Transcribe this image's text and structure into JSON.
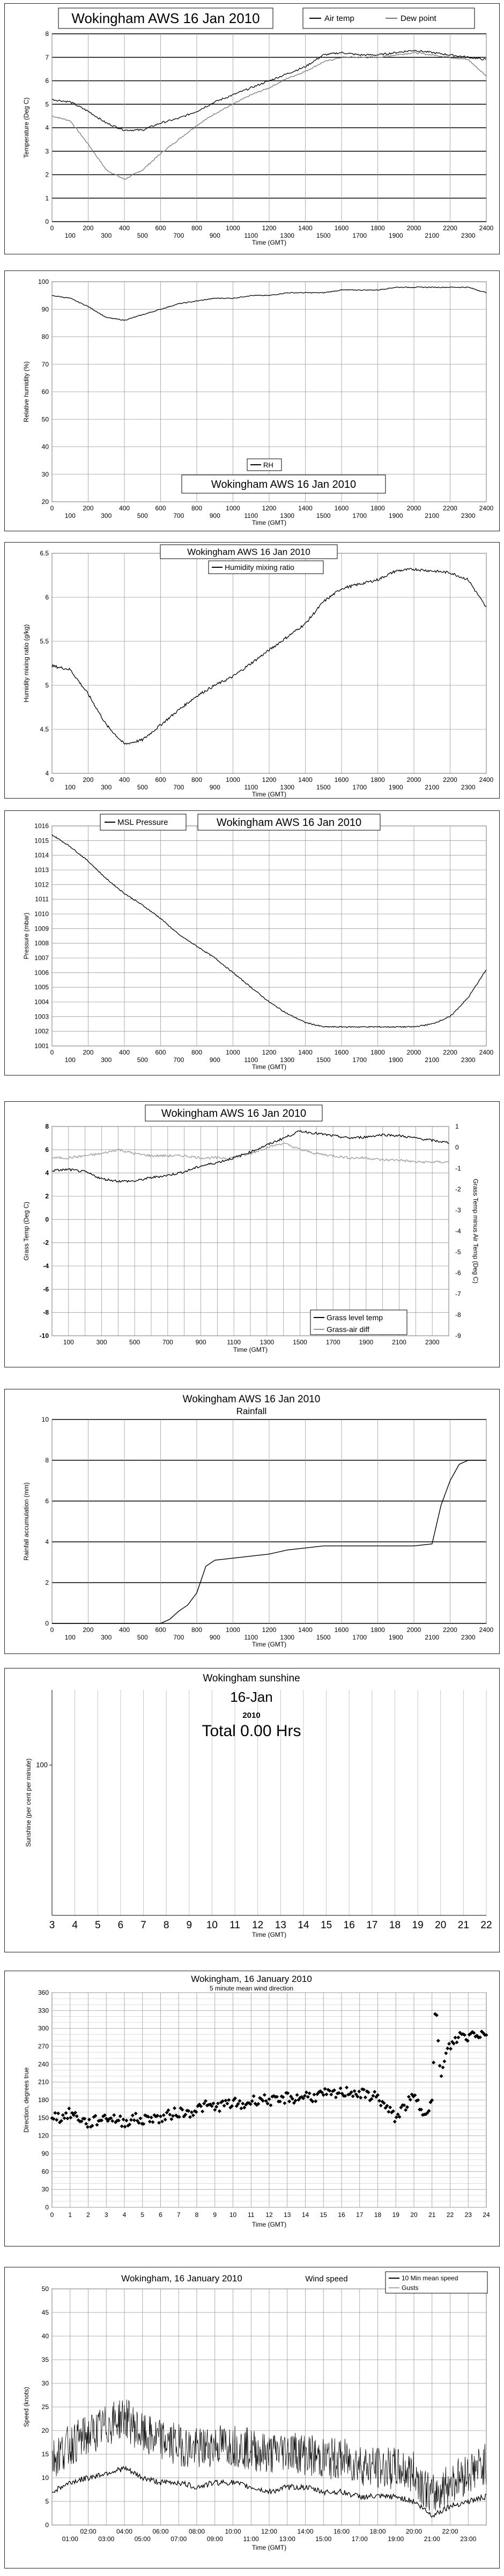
{
  "charts": [
    {
      "id": "temp",
      "type": "line",
      "title": "Wokingham AWS 16 Jan 2010",
      "ylabel": "Temperature (Deg C)",
      "xlabel": "Time (GMT)",
      "ylim": [
        0,
        8
      ],
      "yticks": [
        "0",
        "1",
        "2",
        "3",
        "4",
        "5",
        "6",
        "7",
        "8"
      ],
      "xlim": [
        0,
        2400
      ],
      "xticks_top": [
        "0",
        "200",
        "400",
        "600",
        "800",
        "1000",
        "1200",
        "1400",
        "1600",
        "1800",
        "2000",
        "2200",
        "2400"
      ],
      "xticks_bottom": [
        "100",
        "300",
        "500",
        "700",
        "900",
        "1100",
        "1300",
        "1500",
        "1700",
        "1900",
        "2100",
        "2300"
      ],
      "series": [
        {
          "name": "Air temp",
          "x": [
            0,
            100,
            200,
            300,
            400,
            500,
            600,
            700,
            800,
            900,
            1000,
            1100,
            1200,
            1300,
            1400,
            1500,
            1600,
            1700,
            1800,
            1900,
            2000,
            2100,
            2200,
            2300,
            2400
          ],
          "values": [
            5.2,
            5.1,
            4.7,
            4.2,
            3.9,
            3.9,
            4.2,
            4.4,
            4.7,
            5.1,
            5.4,
            5.7,
            6.0,
            6.3,
            6.6,
            7.1,
            7.2,
            7.1,
            7.1,
            7.2,
            7.3,
            7.2,
            7.1,
            7.0,
            6.9
          ]
        },
        {
          "name": "Dew point",
          "x": [
            0,
            100,
            200,
            300,
            400,
            500,
            600,
            700,
            800,
            900,
            1000,
            1100,
            1200,
            1300,
            1400,
            1500,
            1600,
            1700,
            1800,
            1900,
            2000,
            2100,
            2200,
            2300,
            2400
          ],
          "values": [
            4.5,
            4.3,
            3.3,
            2.2,
            1.8,
            2.2,
            2.9,
            3.5,
            4.1,
            4.6,
            5.0,
            5.4,
            5.7,
            6.1,
            6.4,
            6.8,
            7.0,
            7.0,
            7.0,
            7.1,
            7.2,
            7.1,
            7.0,
            6.9,
            6.2
          ]
        }
      ]
    },
    {
      "id": "rh",
      "type": "line",
      "title": "Wokingham AWS 16 Jan 2010",
      "ylabel": "Relative humidity (%)",
      "xlabel": "Time (GMT)",
      "ylim": [
        20,
        100
      ],
      "yticks": [
        "20",
        "30",
        "40",
        "50",
        "60",
        "70",
        "80",
        "90",
        "100"
      ],
      "xlim": [
        0,
        2400
      ],
      "xticks_top": [
        "0",
        "200",
        "400",
        "600",
        "800",
        "1000",
        "1200",
        "1400",
        "1600",
        "1800",
        "2000",
        "2200",
        "2400"
      ],
      "xticks_bottom": [
        "100",
        "300",
        "500",
        "700",
        "900",
        "1100",
        "1300",
        "1500",
        "1700",
        "1900",
        "2100",
        "2300"
      ],
      "series": [
        {
          "name": "RH",
          "x": [
            0,
            100,
            200,
            300,
            400,
            500,
            600,
            700,
            800,
            900,
            1000,
            1100,
            1200,
            1300,
            1400,
            1500,
            1600,
            1700,
            1800,
            1900,
            2000,
            2100,
            2200,
            2300,
            2400
          ],
          "values": [
            95,
            94,
            91,
            87,
            86,
            88,
            90,
            92,
            93,
            94,
            94,
            95,
            95,
            96,
            96,
            96,
            97,
            97,
            97,
            98,
            98,
            98,
            98,
            98,
            96
          ]
        }
      ]
    },
    {
      "id": "mix",
      "type": "line",
      "title": "Wokingham AWS 16 Jan 2010",
      "ylabel": "Humidity mixing ratio (g/kg)",
      "xlabel": "Time (GMT)",
      "ylim": [
        4,
        6.5
      ],
      "yticks": [
        "4",
        "4.5",
        "5",
        "5.5",
        "6",
        "6.5"
      ],
      "xlim": [
        0,
        2400
      ],
      "xticks_top": [
        "0",
        "200",
        "400",
        "600",
        "800",
        "1000",
        "1200",
        "1400",
        "1600",
        "1800",
        "2000",
        "2200",
        "2400"
      ],
      "xticks_bottom": [
        "100",
        "300",
        "500",
        "700",
        "900",
        "1100",
        "1300",
        "1500",
        "1700",
        "1900",
        "2100",
        "2300"
      ],
      "series": [
        {
          "name": "Humidity mixing ratio",
          "x": [
            0,
            100,
            200,
            300,
            400,
            500,
            600,
            700,
            800,
            900,
            1000,
            1100,
            1200,
            1300,
            1400,
            1500,
            1600,
            1700,
            1800,
            1900,
            2000,
            2100,
            2200,
            2300,
            2400
          ],
          "values": [
            5.22,
            5.18,
            4.9,
            4.55,
            4.33,
            4.38,
            4.55,
            4.72,
            4.88,
            5.0,
            5.1,
            5.25,
            5.4,
            5.55,
            5.7,
            5.95,
            6.1,
            6.15,
            6.2,
            6.3,
            6.32,
            6.3,
            6.28,
            6.2,
            5.88
          ]
        }
      ]
    },
    {
      "id": "pres",
      "type": "line",
      "title": "Wokingham AWS 16 Jan 2010",
      "ylabel": "Pressure (mbar)",
      "xlabel": "Time (GMT)",
      "ylim": [
        1001,
        1016
      ],
      "yticks": [
        "1001",
        "1002",
        "1003",
        "1004",
        "1005",
        "1006",
        "1007",
        "1008",
        "1009",
        "1010",
        "1011",
        "1012",
        "1013",
        "1014",
        "1015",
        "1016"
      ],
      "xlim": [
        0,
        2400
      ],
      "xticks_top": [
        "0",
        "200",
        "400",
        "600",
        "800",
        "1000",
        "1200",
        "1400",
        "1600",
        "1800",
        "2000",
        "2200",
        "2400"
      ],
      "xticks_bottom": [
        "100",
        "300",
        "500",
        "700",
        "900",
        "1100",
        "1300",
        "1500",
        "1700",
        "1900",
        "2100",
        "2300"
      ],
      "series": [
        {
          "name": "MSL Pressure",
          "x": [
            0,
            100,
            200,
            300,
            400,
            500,
            600,
            700,
            800,
            900,
            1000,
            1100,
            1200,
            1300,
            1400,
            1500,
            1600,
            1700,
            1800,
            1900,
            2000,
            2100,
            2200,
            2300,
            2400
          ],
          "values": [
            1015.4,
            1014.6,
            1013.6,
            1012.4,
            1011.4,
            1010.6,
            1009.7,
            1008.6,
            1007.8,
            1007.0,
            1006.0,
            1005.0,
            1004.0,
            1003.2,
            1002.6,
            1002.3,
            1002.3,
            1002.3,
            1002.3,
            1002.3,
            1002.3,
            1002.5,
            1003.0,
            1004.3,
            1006.2
          ]
        }
      ]
    },
    {
      "id": "grass",
      "type": "line",
      "title": "Wokingham AWS 16 Jan 2010",
      "ylabel": "Grass Temp (Deg C)",
      "y2label": "Grass Temp minus Air Temp (Deg C)",
      "xlabel": "Time (GMT)",
      "ylim": [
        -10,
        8
      ],
      "yticks": [
        "-10",
        "-8",
        "-6",
        "-4",
        "-2",
        "0",
        "2",
        "4",
        "6",
        "8"
      ],
      "y2lim": [
        -9,
        1
      ],
      "y2ticks": [
        "-9",
        "-8",
        "-7",
        "-6",
        "-5",
        "-4",
        "-3",
        "-2",
        "-1",
        "0",
        "1"
      ],
      "xlim": [
        0,
        2400
      ],
      "xticks_bottom": [
        "100",
        "300",
        "500",
        "700",
        "900",
        "1100",
        "1300",
        "1500",
        "1700",
        "1900",
        "2100",
        "2300"
      ],
      "series": [
        {
          "name": "Grass level temp",
          "axis": "left",
          "x": [
            0,
            100,
            200,
            300,
            400,
            500,
            600,
            700,
            800,
            900,
            1000,
            1100,
            1200,
            1300,
            1400,
            1500,
            1600,
            1700,
            1800,
            1900,
            2000,
            2100,
            2200,
            2300,
            2400
          ],
          "values": [
            4.2,
            4.3,
            4.1,
            3.5,
            3.3,
            3.3,
            3.6,
            3.8,
            4.1,
            4.6,
            4.9,
            5.3,
            5.8,
            6.4,
            7.0,
            7.6,
            7.4,
            7.2,
            7.0,
            7.1,
            7.3,
            7.2,
            7.0,
            6.8,
            6.6
          ]
        },
        {
          "name": "Grass-air diff",
          "axis": "right",
          "x": [
            0,
            100,
            200,
            300,
            400,
            500,
            600,
            700,
            800,
            900,
            1000,
            1100,
            1200,
            1300,
            1400,
            1500,
            1600,
            1700,
            1800,
            1900,
            2000,
            2100,
            2200,
            2300,
            2400
          ],
          "values": [
            -0.5,
            -0.5,
            -0.4,
            -0.3,
            -0.1,
            -0.3,
            -0.4,
            -0.4,
            -0.4,
            -0.5,
            -0.5,
            -0.5,
            -0.3,
            0.0,
            0.2,
            -0.1,
            -0.3,
            -0.4,
            -0.5,
            -0.5,
            -0.6,
            -0.6,
            -0.7,
            -0.7,
            -0.7
          ]
        }
      ]
    },
    {
      "id": "rain",
      "type": "line",
      "title": "Wokingham AWS 16 Jan 2010",
      "subtitle": "Rainfall",
      "ylabel": "Rainfall accumulation (mm)",
      "xlabel": "Time (GMT)",
      "ylim": [
        0,
        10
      ],
      "yticks": [
        "0",
        "2",
        "4",
        "6",
        "8",
        "10"
      ],
      "xlim": [
        0,
        2400
      ],
      "xticks_top": [
        "0",
        "200",
        "400",
        "600",
        "800",
        "1000",
        "1200",
        "1400",
        "1600",
        "1800",
        "2000",
        "2200",
        "2400"
      ],
      "xticks_bottom": [
        "100",
        "300",
        "500",
        "700",
        "900",
        "1100",
        "1300",
        "1500",
        "1700",
        "1900",
        "2100",
        "2300"
      ],
      "series": [
        {
          "name": "Rainfall",
          "x": [
            0,
            600,
            650,
            700,
            750,
            800,
            850,
            900,
            1000,
            1100,
            1200,
            1300,
            1400,
            1500,
            1600,
            1700,
            1800,
            1900,
            2000,
            2100,
            2150,
            2200,
            2250,
            2300,
            2350,
            2400
          ],
          "values": [
            0,
            0,
            0.2,
            0.6,
            0.9,
            1.5,
            2.8,
            3.1,
            3.2,
            3.3,
            3.4,
            3.6,
            3.7,
            3.8,
            3.8,
            3.8,
            3.8,
            3.8,
            3.8,
            3.9,
            5.8,
            7.0,
            7.8,
            8.0,
            8.0,
            8.0
          ]
        }
      ]
    },
    {
      "id": "sun",
      "type": "bar",
      "title": "Wokingham sunshine",
      "date_label": "16-Jan",
      "year_label": "2010",
      "total_label": "Total 0.00 Hrs",
      "ylabel": "Sunshine (per cent per minute)",
      "xlabel": "Time (GMT)",
      "ylim": [
        0,
        150
      ],
      "yticks": [
        "100"
      ],
      "xlim": [
        3,
        22
      ],
      "xticks": [
        "3",
        "4",
        "5",
        "6",
        "7",
        "8",
        "9",
        "10",
        "11",
        "12",
        "13",
        "14",
        "15",
        "16",
        "17",
        "18",
        "19",
        "20",
        "21",
        "22"
      ],
      "values": []
    },
    {
      "id": "dir",
      "type": "scatter",
      "title": "Wokingham,  16 January 2010",
      "subtitle": "5 minute mean wind direction",
      "ylabel": "Direction, degrees true",
      "xlabel": "Time (GMT)",
      "ylim": [
        0,
        360
      ],
      "yticks": [
        "0",
        "30",
        "60",
        "90",
        "120",
        "150",
        "180",
        "210",
        "240",
        "270",
        "300",
        "330",
        "360"
      ],
      "xlim": [
        0,
        24
      ],
      "xticks": [
        "0",
        "1",
        "2",
        "3",
        "4",
        "5",
        "6",
        "7",
        "8",
        "9",
        "10",
        "11",
        "12",
        "13",
        "14",
        "15",
        "16",
        "17",
        "18",
        "19",
        "20",
        "21",
        "22",
        "23",
        "24"
      ],
      "series": [
        {
          "name": "5 minute mean wind direction",
          "x": [
            0,
            0.5,
            1,
            1.5,
            2,
            2.5,
            3,
            3.5,
            4,
            4.5,
            5,
            5.5,
            6,
            6.5,
            7,
            7.5,
            8,
            8.5,
            9,
            9.5,
            10,
            10.5,
            11,
            11.5,
            12,
            12.5,
            13,
            13.5,
            14,
            14.5,
            15,
            15.5,
            16,
            16.5,
            17,
            17.5,
            18,
            18.5,
            19,
            19.5,
            20,
            20.5,
            21,
            21.2,
            21.5,
            21.8,
            22,
            22.3,
            22.6,
            23,
            23.3,
            23.6,
            24
          ],
          "values": [
            155,
            150,
            158,
            150,
            140,
            146,
            152,
            148,
            142,
            150,
            145,
            152,
            148,
            155,
            160,
            158,
            165,
            170,
            168,
            172,
            175,
            170,
            178,
            182,
            180,
            176,
            185,
            182,
            188,
            185,
            190,
            188,
            192,
            195,
            190,
            188,
            185,
            165,
            150,
            170,
            185,
            160,
            175,
            340,
            215,
            260,
            270,
            280,
            290,
            285,
            295,
            290,
            295
          ]
        }
      ]
    },
    {
      "id": "speed",
      "type": "line",
      "title": "Wokingham,  16 January 2010",
      "subtitle": "Wind speed",
      "ylabel": "Speed (knots)",
      "xlabel": "Time (GMT)",
      "ylim": [
        0,
        50
      ],
      "yticks": [
        "0",
        "5",
        "10",
        "15",
        "20",
        "25",
        "30",
        "35",
        "40",
        "45",
        "50"
      ],
      "xlim": [
        0,
        24
      ],
      "xticks_top": [
        "02:00",
        "04:00",
        "06:00",
        "08:00",
        "10:00",
        "12:00",
        "14:00",
        "16:00",
        "18:00",
        "20:00",
        "22:00"
      ],
      "xticks_bottom": [
        "01:00",
        "03:00",
        "05:00",
        "07:00",
        "09:00",
        "11:00",
        "13:00",
        "15:00",
        "17:00",
        "19:00",
        "21:00",
        "23:00"
      ],
      "series": [
        {
          "name": "10 Min mean speed",
          "x": [
            0,
            1,
            2,
            3,
            4,
            5,
            6,
            7,
            8,
            9,
            10,
            11,
            12,
            13,
            14,
            15,
            16,
            17,
            18,
            19,
            20,
            21,
            22,
            23,
            24
          ],
          "values": [
            7,
            9,
            10,
            11,
            12,
            10,
            9,
            9,
            8,
            9,
            9,
            8,
            7,
            8,
            8,
            7,
            7,
            6,
            6,
            6,
            5,
            2,
            4,
            5,
            6
          ]
        },
        {
          "name": "Gusts",
          "x": [
            0,
            1,
            2,
            3,
            4,
            5,
            6,
            7,
            8,
            9,
            10,
            11,
            12,
            13,
            14,
            15,
            16,
            17,
            18,
            19,
            20,
            21,
            22,
            23,
            24
          ],
          "values": [
            14,
            17,
            19,
            21,
            23,
            19,
            18,
            17,
            16,
            17,
            17,
            16,
            15,
            16,
            15,
            14,
            14,
            13,
            12,
            12,
            11,
            6,
            9,
            11,
            13
          ]
        }
      ]
    }
  ]
}
